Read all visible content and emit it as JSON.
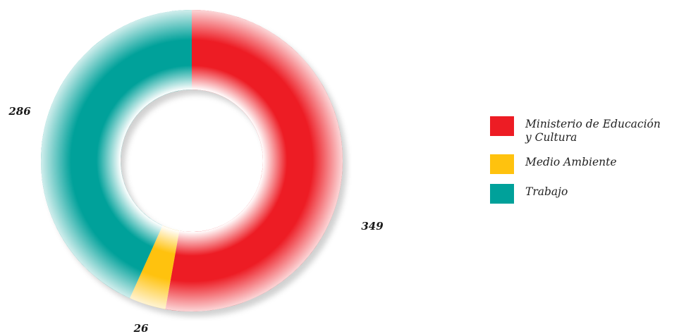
{
  "chart_data": {
    "type": "pie",
    "style": "donut",
    "start_angle": "12 o'clock",
    "direction": "clockwise",
    "legend_position": "right",
    "slices": [
      {
        "label_lines": [
          "Ministerio de Educación",
          "y Cultura"
        ],
        "value": 349,
        "value_label": "349",
        "color": "#ed1c24"
      },
      {
        "label_lines": [
          "Medio Ambiente"
        ],
        "value": 26,
        "value_label": "26",
        "color": "#ffc20e"
      },
      {
        "label_lines": [
          "Trabajo"
        ],
        "value": 286,
        "value_label": "286",
        "color": "#00a19a"
      }
    ]
  }
}
